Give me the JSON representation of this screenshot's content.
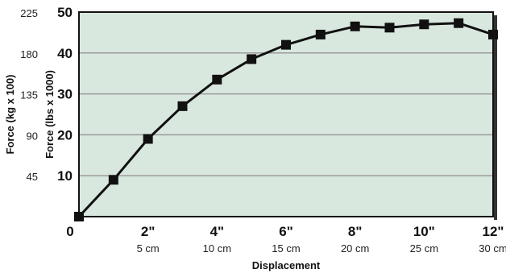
{
  "chart_data": {
    "type": "line",
    "xlabel": "Displacement",
    "ylabel_primary": "Force (lbs x 1000)",
    "ylabel_secondary": "Force (kg x 100)",
    "xlim": [
      0,
      12
    ],
    "ylim": [
      0,
      50
    ],
    "grid": true,
    "colors": {
      "plot_background": "#d9e8df",
      "line": "#111111",
      "grid": "#9a9a9a"
    },
    "x_ticks": [
      {
        "value": 0,
        "label": "0",
        "sublabel": ""
      },
      {
        "value": 2,
        "label": "2\"",
        "sublabel": "5 cm"
      },
      {
        "value": 4,
        "label": "4\"",
        "sublabel": "10 cm"
      },
      {
        "value": 6,
        "label": "6\"",
        "sublabel": "15 cm"
      },
      {
        "value": 8,
        "label": "8\"",
        "sublabel": "20 cm"
      },
      {
        "value": 10,
        "label": "10\"",
        "sublabel": "25 cm"
      },
      {
        "value": 12,
        "label": "12\"",
        "sublabel": "30 cm"
      }
    ],
    "y_ticks": [
      {
        "value": 10,
        "label": "10"
      },
      {
        "value": 20,
        "label": "20"
      },
      {
        "value": 30,
        "label": "30"
      },
      {
        "value": 40,
        "label": "40"
      },
      {
        "value": 50,
        "label": "50"
      }
    ],
    "y_secondary_ticks": [
      {
        "value": 10,
        "label": "45"
      },
      {
        "value": 20,
        "label": "90"
      },
      {
        "value": 30,
        "label": "135"
      },
      {
        "value": 40,
        "label": "180"
      },
      {
        "value": 50,
        "label": "225"
      }
    ],
    "series": [
      {
        "x": [
          0,
          1,
          2,
          3,
          4,
          5,
          6,
          7,
          8,
          9,
          10,
          11,
          12
        ],
        "y": [
          0,
          9,
          19,
          27,
          33.5,
          38.5,
          42,
          44.5,
          46.5,
          46.2,
          47,
          47.3,
          44.5
        ]
      }
    ]
  }
}
